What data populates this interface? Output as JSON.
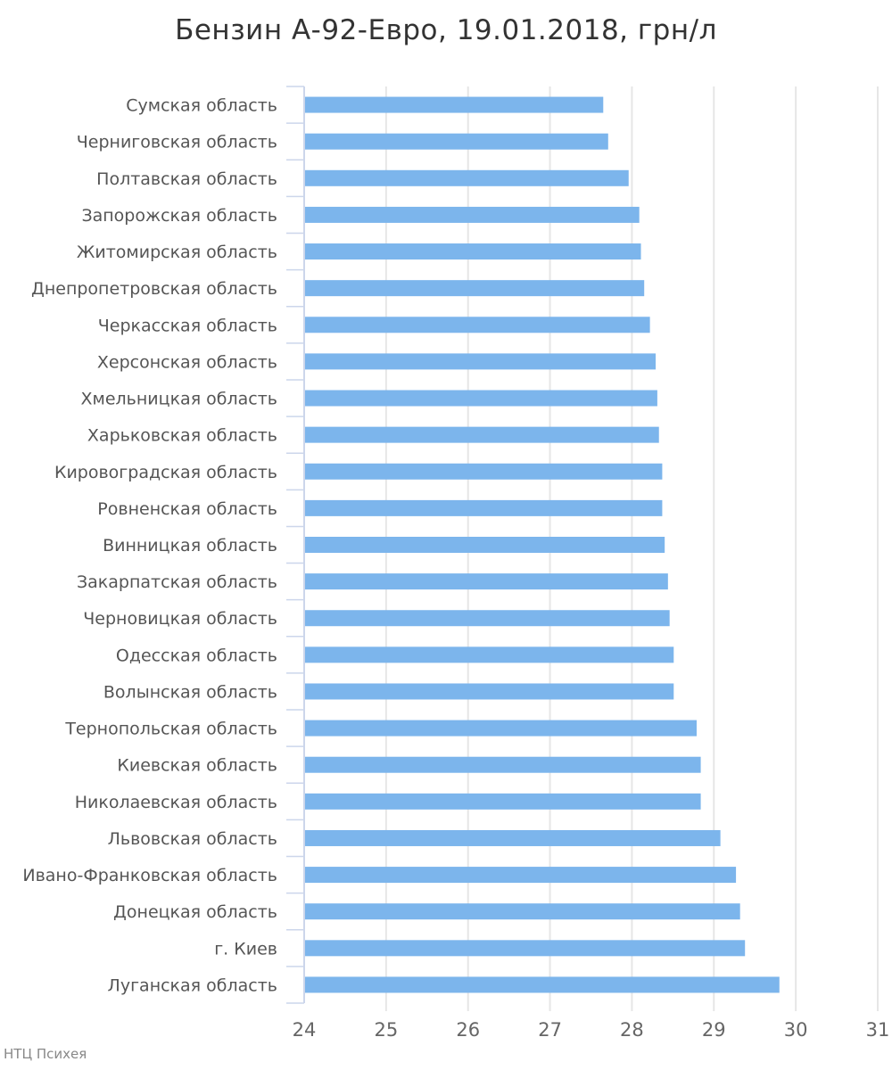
{
  "chart_data": {
    "type": "bar",
    "orientation": "horizontal",
    "title": "Бензин А-92-Евро, 19.01.2018, грн/л",
    "credit": "НТЦ Психея",
    "xlim": [
      24,
      31
    ],
    "xticks": [
      24,
      25,
      26,
      27,
      28,
      29,
      30,
      31
    ],
    "grid": true,
    "bar_color": "#7cb5ec",
    "categories": [
      "Сумская область",
      "Черниговская область",
      "Полтавская область",
      "Запорожская область",
      "Житомирская область",
      "Днепропетровская область",
      "Черкасская область",
      "Херсонская область",
      "Хмельницкая область",
      "Харьковская область",
      "Кировоградская область",
      "Ровненская область",
      "Винницкая область",
      "Закарпатская область",
      "Черновицкая область",
      "Одесская область",
      "Волынская область",
      "Тернопольская область",
      "Киевская область",
      "Николаевская область",
      "Львовская область",
      "Ивано-Франковская область",
      "Донецкая область",
      "г. Киев",
      "Луганская область"
    ],
    "values": [
      27.65,
      27.71,
      27.96,
      28.09,
      28.11,
      28.15,
      28.22,
      28.29,
      28.31,
      28.33,
      28.37,
      28.37,
      28.4,
      28.44,
      28.46,
      28.51,
      28.51,
      28.79,
      28.84,
      28.84,
      29.08,
      29.27,
      29.32,
      29.38,
      29.8
    ]
  }
}
